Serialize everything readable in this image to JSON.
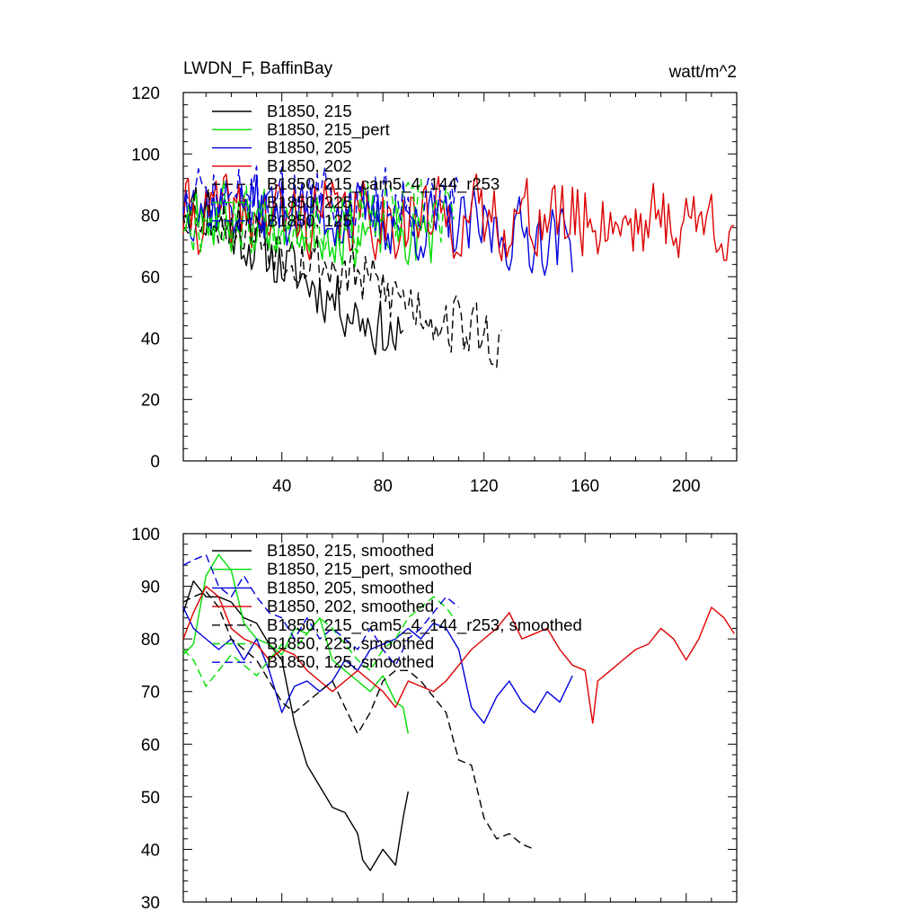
{
  "chart_data": [
    {
      "type": "line",
      "title": "LWDN_F, BaffinBay",
      "units_label": "watt/m^2",
      "xlim": [
        1,
        220
      ],
      "ylim": [
        0,
        120
      ],
      "xticks": [
        40,
        80,
        120,
        160,
        200
      ],
      "yticks": [
        0,
        20,
        40,
        60,
        80,
        100,
        120
      ],
      "xtick_labels": [
        "40",
        "80",
        "120",
        "160",
        "200"
      ],
      "ytick_labels": [
        "0",
        "20",
        "40",
        "60",
        "80",
        "100",
        "120"
      ],
      "series": [
        {
          "name": "B1850, 215",
          "color": "#000000",
          "dash": "solid",
          "length": 88,
          "start": 85,
          "trend_end": 38,
          "noise": 9,
          "seed": 11,
          "ymin": 20,
          "ymax": 109
        },
        {
          "name": "B1850, 215_pert",
          "color": "#00dd00",
          "dash": "solid",
          "length": 100,
          "start": 80,
          "trend_end": 72,
          "noise": 10,
          "seed": 23,
          "ymin": 45,
          "ymax": 110
        },
        {
          "name": "B1850, 205",
          "color": "#0000dd",
          "dash": "solid",
          "length": 155,
          "start": 85,
          "trend_end": 72,
          "noise": 11,
          "seed": 37,
          "ymin": 45,
          "ymax": 106
        },
        {
          "name": "B1850, 202",
          "color": "#dd0000",
          "dash": "solid",
          "length": 219,
          "start": 80,
          "trend_end": 78,
          "noise": 12,
          "seed": 41,
          "ymin": 40,
          "ymax": 101
        },
        {
          "name": "B1850, 215_cam5_4_144_r253",
          "color": "#000000",
          "dash": "dashed",
          "length": 127,
          "start": 85,
          "trend_end": 38,
          "noise": 10,
          "seed": 53,
          "ymin": 19,
          "ymax": 108
        },
        {
          "name": "B1850, 225",
          "color": "#00dd00",
          "dash": "dashed",
          "length": 108,
          "start": 80,
          "trend_end": 80,
          "noise": 11,
          "seed": 67,
          "ymin": 45,
          "ymax": 110
        },
        {
          "name": "B1850, 125",
          "color": "#0000dd",
          "dash": "dashed",
          "length": 110,
          "start": 85,
          "trend_end": 85,
          "noise": 10,
          "seed": 71,
          "ymin": 50,
          "ymax": 113
        }
      ]
    },
    {
      "type": "line",
      "title": "",
      "xlim": [
        1,
        220
      ],
      "ylim": [
        30,
        100
      ],
      "xticks": [
        40,
        80,
        120,
        160,
        200
      ],
      "yticks": [
        30,
        40,
        50,
        60,
        70,
        80,
        90,
        100
      ],
      "ytick_labels": [
        "30",
        "40",
        "50",
        "60",
        "70",
        "80",
        "90",
        "100"
      ],
      "series": [
        {
          "name": "B1850, 215, smoothed",
          "color": "#000000",
          "dash": "solid",
          "points": [
            [
              1,
              85
            ],
            [
              5,
              91
            ],
            [
              10,
              88
            ],
            [
              15,
              88
            ],
            [
              20,
              87
            ],
            [
              25,
              84
            ],
            [
              30,
              83
            ],
            [
              35,
              79
            ],
            [
              40,
              76
            ],
            [
              45,
              64
            ],
            [
              50,
              56
            ],
            [
              55,
              52
            ],
            [
              60,
              48
            ],
            [
              65,
              47
            ],
            [
              70,
              43
            ],
            [
              72,
              38
            ],
            [
              75,
              36
            ],
            [
              80,
              40
            ],
            [
              85,
              37
            ],
            [
              88,
              46
            ],
            [
              90,
              51
            ]
          ]
        },
        {
          "name": "B1850, 215_pert, smoothed",
          "color": "#00dd00",
          "dash": "solid",
          "points": [
            [
              1,
              77
            ],
            [
              5,
              79
            ],
            [
              10,
              92
            ],
            [
              15,
              96
            ],
            [
              20,
              93
            ],
            [
              25,
              83
            ],
            [
              30,
              80
            ],
            [
              35,
              79
            ],
            [
              40,
              77
            ],
            [
              45,
              82
            ],
            [
              50,
              81
            ],
            [
              55,
              84
            ],
            [
              60,
              76
            ],
            [
              65,
              74
            ],
            [
              70,
              72
            ],
            [
              75,
              70
            ],
            [
              80,
              73
            ],
            [
              85,
              68
            ],
            [
              88,
              67
            ],
            [
              90,
              62
            ]
          ]
        },
        {
          "name": "B1850, 205, smoothed",
          "color": "#0000dd",
          "dash": "solid",
          "points": [
            [
              1,
              86
            ],
            [
              5,
              82
            ],
            [
              10,
              80
            ],
            [
              15,
              78
            ],
            [
              20,
              80
            ],
            [
              25,
              76
            ],
            [
              30,
              80
            ],
            [
              35,
              74
            ],
            [
              40,
              66
            ],
            [
              45,
              71
            ],
            [
              50,
              72
            ],
            [
              55,
              70
            ],
            [
              60,
              72
            ],
            [
              65,
              76
            ],
            [
              70,
              74
            ],
            [
              75,
              78
            ],
            [
              80,
              79
            ],
            [
              85,
              80
            ],
            [
              90,
              82
            ],
            [
              95,
              80
            ],
            [
              100,
              83
            ],
            [
              105,
              82
            ],
            [
              110,
              78
            ],
            [
              115,
              67
            ],
            [
              120,
              64
            ],
            [
              125,
              69
            ],
            [
              130,
              72
            ],
            [
              135,
              68
            ],
            [
              140,
              66
            ],
            [
              145,
              70
            ],
            [
              150,
              68
            ],
            [
              155,
              73
            ]
          ]
        },
        {
          "name": "B1850, 202, smoothed",
          "color": "#dd0000",
          "dash": "solid",
          "points": [
            [
              1,
              80
            ],
            [
              5,
              85
            ],
            [
              10,
              90
            ],
            [
              15,
              88
            ],
            [
              20,
              82
            ],
            [
              25,
              80
            ],
            [
              30,
              79
            ],
            [
              35,
              76
            ],
            [
              40,
              78
            ],
            [
              45,
              77
            ],
            [
              50,
              74
            ],
            [
              55,
              72
            ],
            [
              60,
              70
            ],
            [
              65,
              72
            ],
            [
              70,
              74
            ],
            [
              75,
              72
            ],
            [
              80,
              70
            ],
            [
              85,
              67
            ],
            [
              90,
              72
            ],
            [
              95,
              71
            ],
            [
              100,
              70
            ],
            [
              105,
              72
            ],
            [
              110,
              75
            ],
            [
              115,
              78
            ],
            [
              120,
              80
            ],
            [
              125,
              82
            ],
            [
              130,
              85
            ],
            [
              135,
              80
            ],
            [
              140,
              81
            ],
            [
              145,
              82
            ],
            [
              150,
              78
            ],
            [
              155,
              75
            ],
            [
              160,
              74
            ],
            [
              163,
              64
            ],
            [
              165,
              72
            ],
            [
              170,
              74
            ],
            [
              175,
              76
            ],
            [
              180,
              78
            ],
            [
              185,
              79
            ],
            [
              190,
              82
            ],
            [
              195,
              80
            ],
            [
              200,
              76
            ],
            [
              205,
              80
            ],
            [
              210,
              86
            ],
            [
              215,
              84
            ],
            [
              219,
              81
            ]
          ]
        },
        {
          "name": "B1850, 215_cam5_4_144_r253, smoothed",
          "color": "#000000",
          "dash": "dashed",
          "points": [
            [
              1,
              87
            ],
            [
              5,
              88
            ],
            [
              10,
              89
            ],
            [
              15,
              86
            ],
            [
              20,
              80
            ],
            [
              25,
              78
            ],
            [
              30,
              76
            ],
            [
              35,
              72
            ],
            [
              40,
              68
            ],
            [
              45,
              66
            ],
            [
              50,
              68
            ],
            [
              55,
              70
            ],
            [
              60,
              72
            ],
            [
              65,
              67
            ],
            [
              70,
              62
            ],
            [
              75,
              66
            ],
            [
              80,
              72
            ],
            [
              85,
              74
            ],
            [
              90,
              74
            ],
            [
              95,
              72
            ],
            [
              100,
              69
            ],
            [
              105,
              66
            ],
            [
              110,
              57
            ],
            [
              115,
              56
            ],
            [
              120,
              46
            ],
            [
              125,
              42
            ],
            [
              130,
              43
            ],
            [
              135,
              41
            ],
            [
              140,
              40
            ]
          ]
        },
        {
          "name": "B1850, 225, smoothed",
          "color": "#00dd00",
          "dash": "dashed",
          "points": [
            [
              1,
              78
            ],
            [
              5,
              76
            ],
            [
              10,
              71
            ],
            [
              15,
              74
            ],
            [
              20,
              77
            ],
            [
              25,
              75
            ],
            [
              30,
              73
            ],
            [
              35,
              76
            ],
            [
              40,
              79
            ],
            [
              45,
              78
            ],
            [
              50,
              81
            ],
            [
              55,
              84
            ],
            [
              60,
              82
            ],
            [
              65,
              79
            ],
            [
              70,
              76
            ],
            [
              75,
              74
            ],
            [
              80,
              78
            ],
            [
              85,
              80
            ],
            [
              90,
              84
            ],
            [
              95,
              86
            ],
            [
              100,
              88
            ],
            [
              105,
              86
            ],
            [
              108,
              84
            ]
          ]
        },
        {
          "name": "B1850, 125, smoothed",
          "color": "#0000dd",
          "dash": "dashed",
          "points": [
            [
              1,
              94
            ],
            [
              5,
              95
            ],
            [
              10,
              96
            ],
            [
              15,
              90
            ],
            [
              20,
              88
            ],
            [
              25,
              92
            ],
            [
              30,
              88
            ],
            [
              35,
              85
            ],
            [
              40,
              84
            ],
            [
              45,
              80
            ],
            [
              50,
              84
            ],
            [
              55,
              80
            ],
            [
              60,
              82
            ],
            [
              65,
              80
            ],
            [
              70,
              78
            ],
            [
              75,
              82
            ],
            [
              80,
              78
            ],
            [
              85,
              75
            ],
            [
              90,
              80
            ],
            [
              95,
              82
            ],
            [
              100,
              85
            ],
            [
              105,
              88
            ],
            [
              110,
              86
            ]
          ]
        }
      ]
    }
  ]
}
